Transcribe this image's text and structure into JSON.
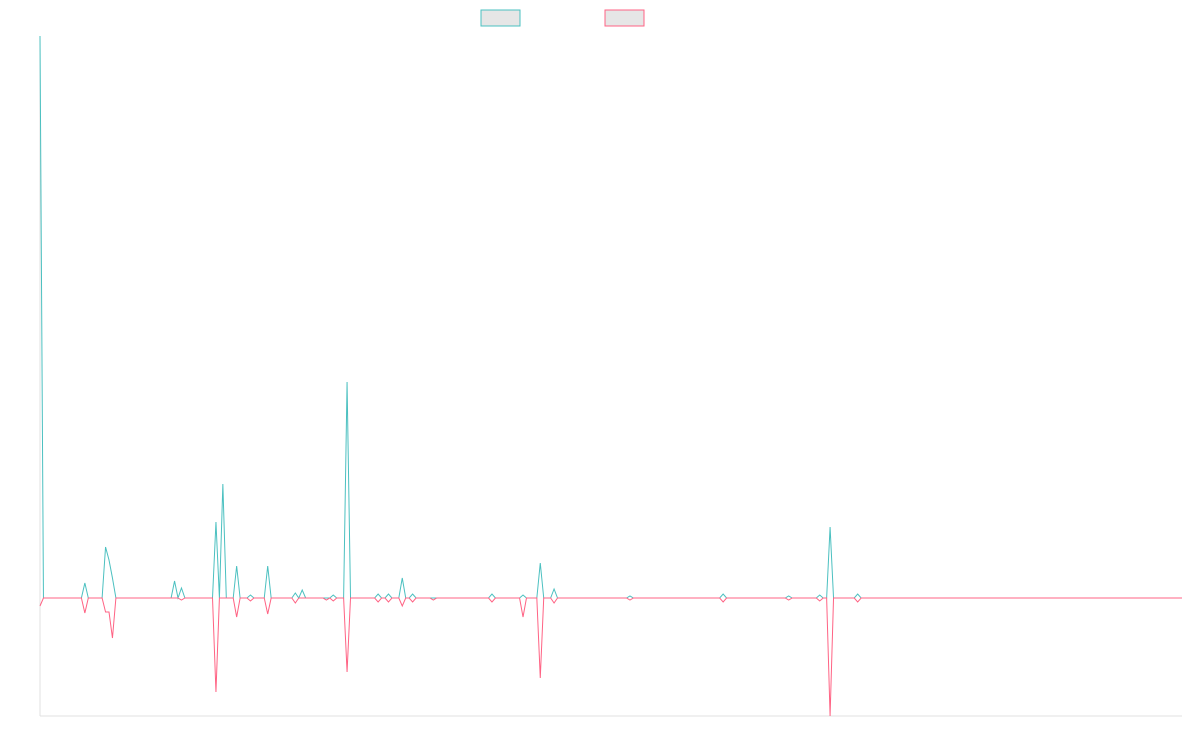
{
  "chart_data": {
    "type": "line",
    "x": [
      0,
      1,
      12,
      13,
      14,
      18,
      19,
      20,
      21,
      22,
      38,
      39,
      40,
      41,
      42,
      50,
      51,
      52,
      53,
      54,
      56,
      57,
      58,
      60,
      61,
      62,
      65,
      66,
      67,
      73,
      74,
      75,
      76,
      77,
      82,
      83,
      84,
      85,
      86,
      88,
      89,
      90,
      97,
      98,
      99,
      100,
      101,
      102,
      104,
      105,
      106,
      107,
      108,
      109,
      113,
      114,
      115,
      130,
      131,
      132,
      139,
      140,
      141,
      144,
      145,
      146,
      148,
      149,
      150,
      170,
      171,
      172,
      197,
      198,
      199,
      216,
      217,
      218,
      225,
      226,
      227,
      228,
      229,
      230,
      236,
      237,
      238,
      331
    ],
    "series": [
      {
        "color": "#4bc0c0",
        "values": [
          562,
          0,
          0,
          15,
          0,
          0,
          51,
          38,
          20,
          0,
          0,
          17,
          0,
          10,
          0,
          0,
          76,
          0,
          114,
          0,
          0,
          32,
          0,
          0,
          3,
          0,
          0,
          32,
          0,
          0,
          5,
          0,
          8,
          0,
          0,
          0,
          0,
          3,
          0,
          0,
          216,
          0,
          0,
          4,
          0,
          0,
          4,
          0,
          0,
          20,
          0,
          0,
          4,
          0,
          0,
          0,
          0,
          0,
          4,
          0,
          0,
          3,
          0,
          0,
          35,
          0,
          0,
          9,
          0,
          0,
          2,
          0,
          0,
          4,
          0,
          0,
          2,
          0,
          0,
          3,
          0,
          0,
          71,
          0,
          0,
          4,
          0,
          0
        ]
      },
      {
        "color": "#ff6384",
        "values": [
          -8,
          0,
          0,
          -15,
          0,
          0,
          -14,
          -14,
          -40,
          0,
          0,
          0,
          0,
          -2,
          0,
          0,
          -94,
          0,
          0,
          0,
          0,
          -19,
          0,
          0,
          -3,
          0,
          0,
          -16,
          0,
          0,
          -5,
          0,
          0,
          0,
          0,
          -2,
          0,
          -3,
          0,
          0,
          -74,
          0,
          0,
          -4,
          0,
          0,
          -4,
          0,
          0,
          -8,
          0,
          0,
          -4,
          0,
          0,
          -2,
          0,
          0,
          -4,
          0,
          0,
          -19,
          0,
          0,
          -80,
          0,
          0,
          -5,
          0,
          0,
          -2,
          0,
          0,
          -4,
          0,
          0,
          -2,
          0,
          0,
          -3,
          0,
          0,
          -118,
          0,
          0,
          -4,
          0,
          0
        ]
      }
    ],
    "xlim": [
      0,
      331
    ],
    "ylim": [
      -118,
      562
    ]
  }
}
